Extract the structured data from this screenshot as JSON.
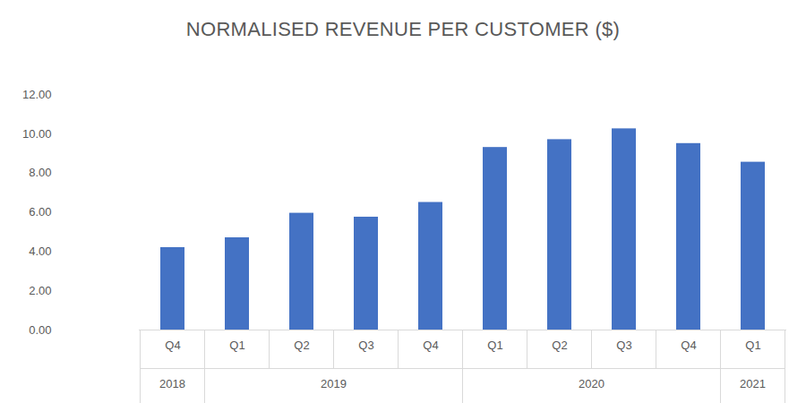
{
  "chart_data": {
    "type": "bar",
    "title": "NORMALISED REVENUE PER CUSTOMER ($)",
    "categories": [
      "Q4",
      "Q1",
      "Q2",
      "Q3",
      "Q4",
      "Q1",
      "Q2",
      "Q3",
      "Q4",
      "Q1"
    ],
    "category_groups": [
      "2018",
      "2019",
      "2019",
      "2019",
      "2019",
      "2020",
      "2020",
      "2020",
      "2020",
      "2021"
    ],
    "values": [
      4.2,
      4.7,
      5.95,
      5.75,
      6.5,
      9.3,
      9.7,
      10.25,
      9.5,
      8.55
    ],
    "color": "#4472c4",
    "ylim": [
      0,
      12
    ],
    "yticks": [
      {
        "value": 0,
        "label": "0.00"
      },
      {
        "value": 2,
        "label": "2.00"
      },
      {
        "value": 4,
        "label": "4.00"
      },
      {
        "value": 6,
        "label": "6.00"
      },
      {
        "value": 8,
        "label": "8.00"
      },
      {
        "value": 10,
        "label": "10.00"
      },
      {
        "value": 12,
        "label": "12.00"
      }
    ],
    "grid": false
  }
}
